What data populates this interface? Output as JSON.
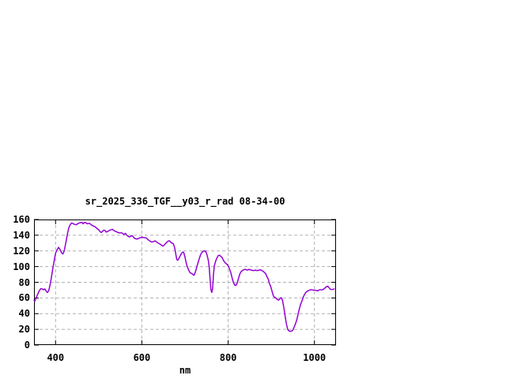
{
  "chart_data": {
    "type": "line",
    "title": "sr_2025_336_TGF__y03_r_rad 08-34-00",
    "xlabel": "nm",
    "ylabel": "",
    "xlim": [
      350,
      1050
    ],
    "ylim": [
      0,
      160
    ],
    "x_ticks": [
      400,
      600,
      800,
      1000
    ],
    "y_ticks": [
      0,
      20,
      40,
      60,
      80,
      100,
      120,
      140,
      160
    ],
    "grid": true,
    "legend_position": "none",
    "colors": {
      "line": "#9400d3",
      "grid": "#b0b0b0",
      "border": "#000000",
      "text": "#000000",
      "background": "#ffffff"
    },
    "series": [
      {
        "points": [
          [
            350,
            57
          ],
          [
            352,
            56
          ],
          [
            355,
            60
          ],
          [
            358,
            64
          ],
          [
            362,
            69
          ],
          [
            366,
            72
          ],
          [
            369,
            71.5
          ],
          [
            372,
            70.5
          ],
          [
            375,
            71.5
          ],
          [
            378,
            69
          ],
          [
            381,
            67
          ],
          [
            384,
            69
          ],
          [
            387,
            76
          ],
          [
            390,
            85
          ],
          [
            394,
            99
          ],
          [
            397,
            108
          ],
          [
            400,
            117
          ],
          [
            403,
            121
          ],
          [
            407,
            124.5
          ],
          [
            410,
            122
          ],
          [
            414,
            117.5
          ],
          [
            417,
            116
          ],
          [
            420,
            120
          ],
          [
            424,
            131
          ],
          [
            428,
            143
          ],
          [
            431,
            150
          ],
          [
            434,
            153.5
          ],
          [
            437,
            155.5
          ],
          [
            440,
            155
          ],
          [
            443,
            154
          ],
          [
            446,
            153.5
          ],
          [
            449,
            153.5
          ],
          [
            452,
            155
          ],
          [
            455,
            155.5
          ],
          [
            458,
            156
          ],
          [
            461,
            156.5
          ],
          [
            464,
            154.5
          ],
          [
            467,
            156.5
          ],
          [
            470,
            156
          ],
          [
            473,
            154.5
          ],
          [
            476,
            155
          ],
          [
            479,
            155
          ],
          [
            482,
            153.5
          ],
          [
            485,
            152.5
          ],
          [
            488,
            151.5
          ],
          [
            491,
            151
          ],
          [
            494,
            149.5
          ],
          [
            497,
            148
          ],
          [
            500,
            147
          ],
          [
            503,
            144.5
          ],
          [
            506,
            143.5
          ],
          [
            509,
            145
          ],
          [
            512,
            146.5
          ],
          [
            515,
            146
          ],
          [
            517,
            144
          ],
          [
            520,
            144.5
          ],
          [
            523,
            145.5
          ],
          [
            526,
            146.5
          ],
          [
            529,
            147
          ],
          [
            532,
            147.5
          ],
          [
            535,
            146
          ],
          [
            538,
            145
          ],
          [
            541,
            144.5
          ],
          [
            544,
            143.5
          ],
          [
            547,
            143
          ],
          [
            550,
            143
          ],
          [
            553,
            143
          ],
          [
            556,
            142
          ],
          [
            559,
            141
          ],
          [
            562,
            142.5
          ],
          [
            564,
            140.5
          ],
          [
            567,
            139
          ],
          [
            571,
            137.8
          ],
          [
            574,
            138.5
          ],
          [
            577,
            139.5
          ],
          [
            580,
            138
          ],
          [
            583,
            136
          ],
          [
            586,
            135.5
          ],
          [
            589,
            135
          ],
          [
            592,
            135.8
          ],
          [
            595,
            136.5
          ],
          [
            598,
            137.2
          ],
          [
            601,
            137.5
          ],
          [
            604,
            137
          ],
          [
            607,
            136.8
          ],
          [
            610,
            136.5
          ],
          [
            613,
            135
          ],
          [
            616,
            133.5
          ],
          [
            619,
            132.5
          ],
          [
            622,
            131.5
          ],
          [
            625,
            131.5
          ],
          [
            628,
            132.2
          ],
          [
            631,
            132.8
          ],
          [
            634,
            131.5
          ],
          [
            637,
            130.2
          ],
          [
            640,
            129.3
          ],
          [
            643,
            128.3
          ],
          [
            646,
            127
          ],
          [
            649,
            126.1
          ],
          [
            652,
            127.5
          ],
          [
            655,
            129.5
          ],
          [
            658,
            131
          ],
          [
            661,
            132.5
          ],
          [
            664,
            133
          ],
          [
            667,
            131
          ],
          [
            670,
            130
          ],
          [
            673,
            129
          ],
          [
            676,
            124
          ],
          [
            679,
            115
          ],
          [
            681,
            109
          ],
          [
            683,
            108
          ],
          [
            686,
            110.5
          ],
          [
            689,
            114
          ],
          [
            692,
            117
          ],
          [
            695,
            118.5
          ],
          [
            697,
            118
          ],
          [
            700,
            112
          ],
          [
            703,
            104
          ],
          [
            706,
            99
          ],
          [
            709,
            95
          ],
          [
            712,
            92
          ],
          [
            715,
            91.5
          ],
          [
            718,
            90
          ],
          [
            721,
            89
          ],
          [
            724,
            93
          ],
          [
            727,
            99
          ],
          [
            730,
            104.5
          ],
          [
            733,
            110
          ],
          [
            736,
            115
          ],
          [
            739,
            118
          ],
          [
            742,
            119.5
          ],
          [
            745,
            120
          ],
          [
            748,
            119.5
          ],
          [
            751,
            115
          ],
          [
            754,
            108
          ],
          [
            756,
            100
          ],
          [
            758,
            85
          ],
          [
            760,
            71
          ],
          [
            762,
            67
          ],
          [
            764,
            72
          ],
          [
            766,
            90
          ],
          [
            768,
            101
          ],
          [
            771,
            107
          ],
          [
            774,
            111
          ],
          [
            777,
            114
          ],
          [
            780,
            114.5
          ],
          [
            783,
            113
          ],
          [
            786,
            111.5
          ],
          [
            789,
            108
          ],
          [
            792,
            105.5
          ],
          [
            795,
            104
          ],
          [
            798,
            102.5
          ],
          [
            800,
            101
          ],
          [
            803,
            97
          ],
          [
            806,
            92.5
          ],
          [
            809,
            86
          ],
          [
            812,
            80
          ],
          [
            815,
            76.5
          ],
          [
            818,
            76
          ],
          [
            821,
            79
          ],
          [
            824,
            85
          ],
          [
            827,
            90.5
          ],
          [
            830,
            93.5
          ],
          [
            833,
            95
          ],
          [
            836,
            96
          ],
          [
            839,
            96.5
          ],
          [
            842,
            96
          ],
          [
            845,
            95.5
          ],
          [
            848,
            96.5
          ],
          [
            851,
            96
          ],
          [
            854,
            95.5
          ],
          [
            857,
            95
          ],
          [
            860,
            95
          ],
          [
            863,
            95.5
          ],
          [
            866,
            95
          ],
          [
            869,
            95
          ],
          [
            872,
            95.5
          ],
          [
            875,
            95.8
          ],
          [
            878,
            95
          ],
          [
            881,
            94
          ],
          [
            884,
            92.5
          ],
          [
            887,
            91
          ],
          [
            890,
            87
          ],
          [
            893,
            84
          ],
          [
            896,
            78
          ],
          [
            899,
            74
          ],
          [
            902,
            68
          ],
          [
            905,
            62.5
          ],
          [
            908,
            60.5
          ],
          [
            911,
            60
          ],
          [
            914,
            58
          ],
          [
            917,
            57.3
          ],
          [
            920,
            59
          ],
          [
            923,
            60.5
          ],
          [
            926,
            57
          ],
          [
            929,
            48
          ],
          [
            932,
            37
          ],
          [
            935,
            27
          ],
          [
            938,
            20
          ],
          [
            941,
            18
          ],
          [
            944,
            17.5
          ],
          [
            947,
            17.8
          ],
          [
            950,
            19
          ],
          [
            953,
            23
          ],
          [
            956,
            27
          ],
          [
            959,
            32
          ],
          [
            962,
            39
          ],
          [
            965,
            46
          ],
          [
            968,
            52
          ],
          [
            971,
            56
          ],
          [
            974,
            61
          ],
          [
            977,
            64.5
          ],
          [
            980,
            67
          ],
          [
            983,
            68.5
          ],
          [
            986,
            69.3
          ],
          [
            989,
            70
          ],
          [
            992,
            70.5
          ],
          [
            995,
            70.2
          ],
          [
            998,
            70
          ],
          [
            1001,
            70
          ],
          [
            1004,
            69.5
          ],
          [
            1007,
            69
          ],
          [
            1010,
            70
          ],
          [
            1013,
            70.5
          ],
          [
            1016,
            70.3
          ],
          [
            1019,
            70.5
          ],
          [
            1022,
            71.5
          ],
          [
            1025,
            73
          ],
          [
            1028,
            74.5
          ],
          [
            1031,
            75
          ],
          [
            1034,
            73
          ],
          [
            1037,
            71
          ],
          [
            1040,
            70.8
          ],
          [
            1043,
            71
          ],
          [
            1046,
            71.5
          ]
        ]
      }
    ]
  }
}
